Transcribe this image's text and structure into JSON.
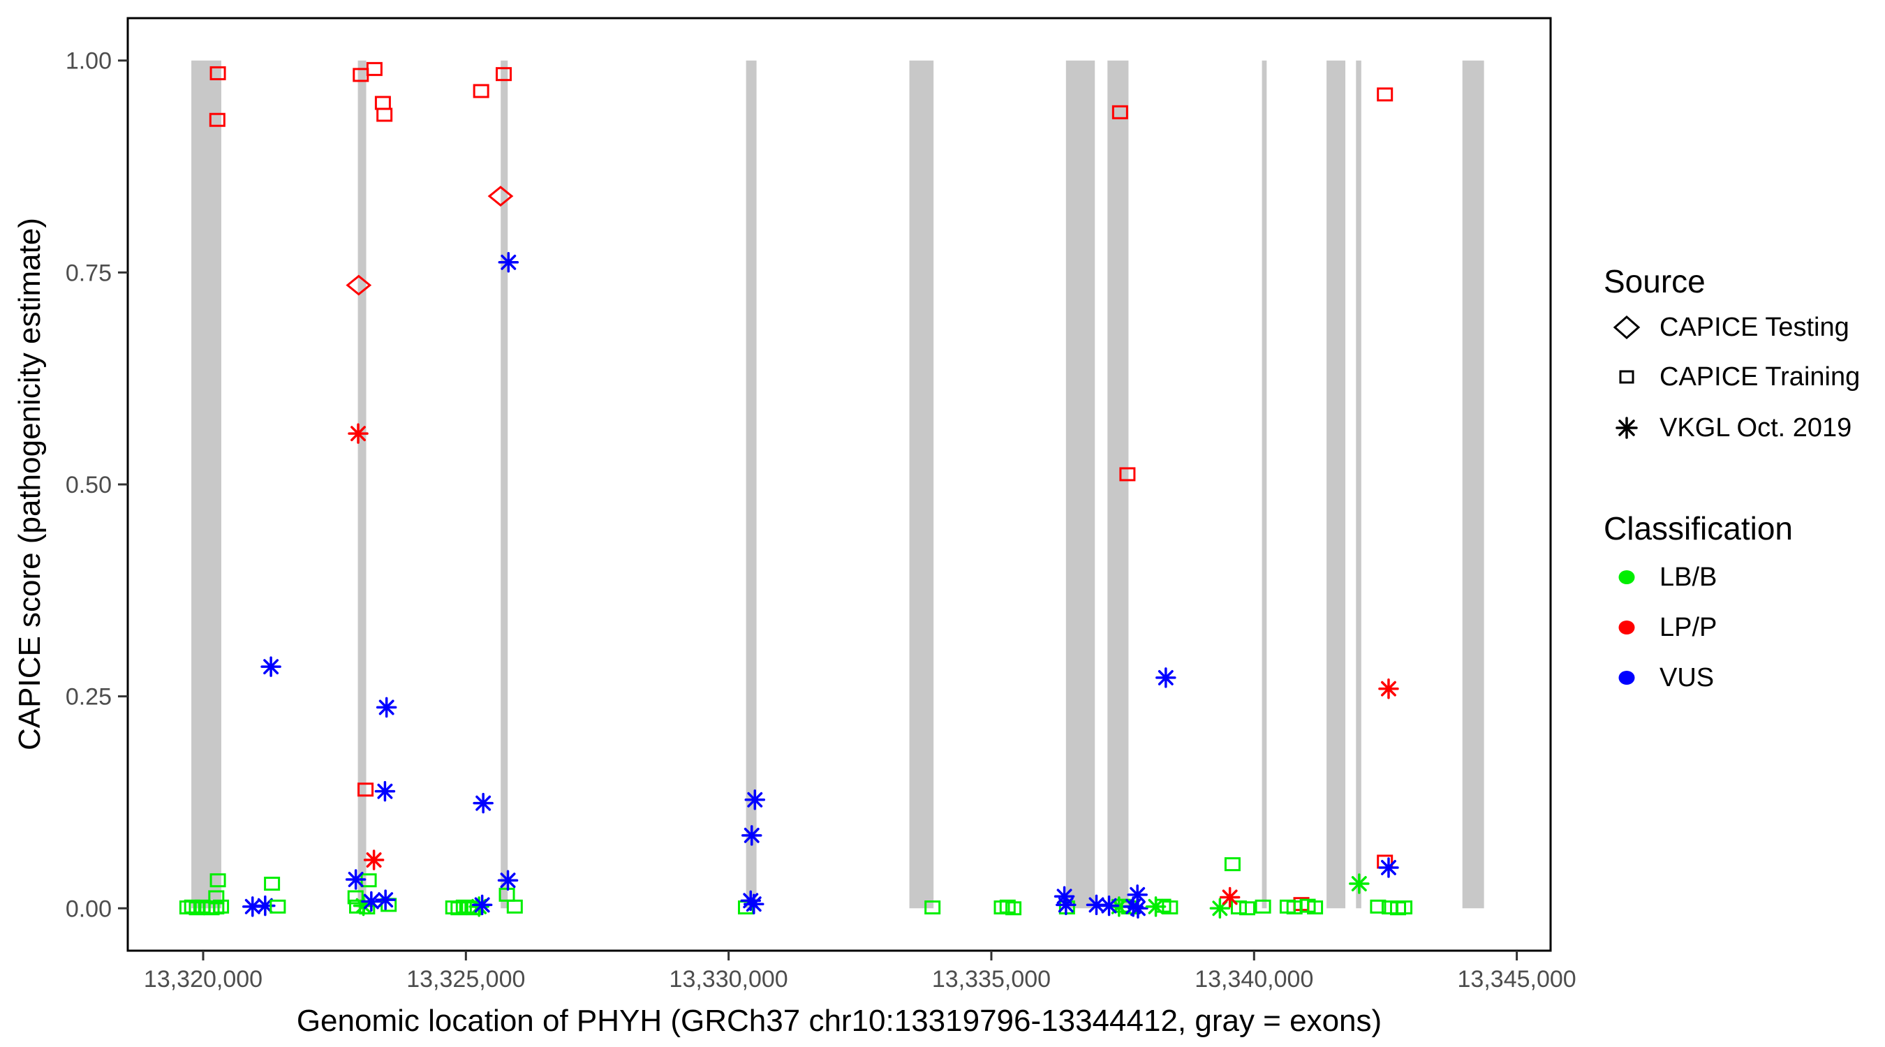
{
  "colors": {
    "exon": "#C8C8C8",
    "panel_border": "#000000",
    "tick": "#333333",
    "tick_label": "#4D4D4D",
    "axis_title": "#000000",
    "classification": {
      "LB/B": "#00EE00",
      "LP/P": "#FF0000",
      "VUS": "#0000FF"
    }
  },
  "legend": {
    "source": {
      "title": "Source",
      "items": [
        {
          "shape": "diamond",
          "label": "CAPICE Testing"
        },
        {
          "shape": "square",
          "label": "CAPICE Training"
        },
        {
          "shape": "asterisk",
          "label": "VKGL Oct. 2019"
        }
      ]
    },
    "classification": {
      "title": "Classification",
      "items": [
        {
          "label": "LB/B",
          "color": "#00EE00"
        },
        {
          "label": "LP/P",
          "color": "#FF0000"
        },
        {
          "label": "VUS",
          "color": "#0000FF"
        }
      ]
    }
  },
  "chart_data": {
    "type": "scatter",
    "title": "",
    "xlabel": "Genomic location of PHYH (GRCh37 chr10:13319796-13344412, gray = exons)",
    "ylabel": "CAPICE score (pathogenicity estimate)",
    "xlim": [
      13318565,
      13345643
    ],
    "ylim": [
      -0.05,
      1.05
    ],
    "grid": false,
    "legend_position": "right",
    "x_ticks": [
      {
        "value": 13320000,
        "label": "13,320,000"
      },
      {
        "value": 13325000,
        "label": "13,325,000"
      },
      {
        "value": 13330000,
        "label": "13,330,000"
      },
      {
        "value": 13335000,
        "label": "13,335,000"
      },
      {
        "value": 13340000,
        "label": "13,340,000"
      },
      {
        "value": 13345000,
        "label": "13,345,000"
      }
    ],
    "y_ticks": [
      {
        "value": 0.0,
        "label": "0.00"
      },
      {
        "value": 0.25,
        "label": "0.25"
      },
      {
        "value": 0.5,
        "label": "0.50"
      },
      {
        "value": 0.75,
        "label": "0.75"
      },
      {
        "value": 1.0,
        "label": "1.00"
      }
    ],
    "markers_by_source": {
      "CAPICE Testing": "diamond",
      "CAPICE Training": "square",
      "VKGL Oct. 2019": "asterisk"
    },
    "exons": [
      [
        13319775,
        13320345
      ],
      [
        13322944,
        13323103
      ],
      [
        13325663,
        13325796
      ],
      [
        13330332,
        13330531
      ],
      [
        13333440,
        13333900
      ],
      [
        13336420,
        13336970
      ],
      [
        13337210,
        13337610
      ],
      [
        13340150,
        13340240
      ],
      [
        13341379,
        13341737
      ],
      [
        13341940,
        13342040
      ],
      [
        13343965,
        13344376
      ]
    ],
    "points": [
      {
        "x": 13319700,
        "y": 0.001,
        "source": "CAPICE Training",
        "cls": "LB/B"
      },
      {
        "x": 13319790,
        "y": 0.002,
        "source": "CAPICE Training",
        "cls": "LB/B"
      },
      {
        "x": 13319880,
        "y": 0.0,
        "source": "CAPICE Training",
        "cls": "LB/B"
      },
      {
        "x": 13319990,
        "y": 0.002,
        "source": "CAPICE Training",
        "cls": "LB/B"
      },
      {
        "x": 13320080,
        "y": 0.001,
        "source": "CAPICE Training",
        "cls": "LB/B"
      },
      {
        "x": 13320160,
        "y": 0.0,
        "source": "CAPICE Training",
        "cls": "LB/B"
      },
      {
        "x": 13320250,
        "y": 0.001,
        "source": "CAPICE Training",
        "cls": "LB/B"
      },
      {
        "x": 13320340,
        "y": 0.002,
        "source": "CAPICE Training",
        "cls": "LB/B"
      },
      {
        "x": 13320250,
        "y": 0.013,
        "source": "CAPICE Training",
        "cls": "LB/B"
      },
      {
        "x": 13320280,
        "y": 0.033,
        "source": "CAPICE Training",
        "cls": "LB/B"
      },
      {
        "x": 13320280,
        "y": 0.985,
        "source": "CAPICE Training",
        "cls": "LP/P"
      },
      {
        "x": 13320270,
        "y": 0.93,
        "source": "CAPICE Training",
        "cls": "LP/P"
      },
      {
        "x": 13320940,
        "y": 0.002,
        "source": "VKGL Oct. 2019",
        "cls": "VUS"
      },
      {
        "x": 13321180,
        "y": 0.003,
        "source": "VKGL Oct. 2019",
        "cls": "VUS"
      },
      {
        "x": 13321290,
        "y": 0.285,
        "source": "VKGL Oct. 2019",
        "cls": "VUS"
      },
      {
        "x": 13321310,
        "y": 0.029,
        "source": "CAPICE Training",
        "cls": "LB/B"
      },
      {
        "x": 13321420,
        "y": 0.002,
        "source": "CAPICE Training",
        "cls": "LB/B"
      },
      {
        "x": 13322930,
        "y": 0.002,
        "source": "CAPICE Training",
        "cls": "LB/B"
      },
      {
        "x": 13322900,
        "y": 0.013,
        "source": "CAPICE Training",
        "cls": "LB/B"
      },
      {
        "x": 13323150,
        "y": 0.033,
        "source": "CAPICE Training",
        "cls": "LB/B"
      },
      {
        "x": 13323120,
        "y": 0.001,
        "source": "CAPICE Training",
        "cls": "LB/B"
      },
      {
        "x": 13323530,
        "y": 0.004,
        "source": "CAPICE Training",
        "cls": "LB/B"
      },
      {
        "x": 13323050,
        "y": 0.003,
        "source": "VKGL Oct. 2019",
        "cls": "LB/B"
      },
      {
        "x": 13323090,
        "y": 0.14,
        "source": "CAPICE Training",
        "cls": "LP/P"
      },
      {
        "x": 13323000,
        "y": 0.983,
        "source": "CAPICE Training",
        "cls": "LP/P"
      },
      {
        "x": 13323260,
        "y": 0.99,
        "source": "CAPICE Training",
        "cls": "LP/P"
      },
      {
        "x": 13323420,
        "y": 0.95,
        "source": "CAPICE Training",
        "cls": "LP/P"
      },
      {
        "x": 13323450,
        "y": 0.936,
        "source": "CAPICE Training",
        "cls": "LP/P"
      },
      {
        "x": 13322960,
        "y": 0.735,
        "source": "CAPICE Testing",
        "cls": "LP/P"
      },
      {
        "x": 13322950,
        "y": 0.56,
        "source": "VKGL Oct. 2019",
        "cls": "LP/P"
      },
      {
        "x": 13323250,
        "y": 0.057,
        "source": "VKGL Oct. 2019",
        "cls": "LP/P"
      },
      {
        "x": 13322905,
        "y": 0.034,
        "source": "VKGL Oct. 2019",
        "cls": "VUS"
      },
      {
        "x": 13323200,
        "y": 0.008,
        "source": "VKGL Oct. 2019",
        "cls": "VUS"
      },
      {
        "x": 13323470,
        "y": 0.01,
        "source": "VKGL Oct. 2019",
        "cls": "VUS"
      },
      {
        "x": 13323490,
        "y": 0.237,
        "source": "VKGL Oct. 2019",
        "cls": "VUS"
      },
      {
        "x": 13323460,
        "y": 0.138,
        "source": "VKGL Oct. 2019",
        "cls": "VUS"
      },
      {
        "x": 13324760,
        "y": 0.001,
        "source": "CAPICE Training",
        "cls": "LB/B"
      },
      {
        "x": 13324860,
        "y": 0.0,
        "source": "CAPICE Training",
        "cls": "LB/B"
      },
      {
        "x": 13324960,
        "y": 0.002,
        "source": "CAPICE Training",
        "cls": "LB/B"
      },
      {
        "x": 13325060,
        "y": 0.001,
        "source": "CAPICE Training",
        "cls": "LB/B"
      },
      {
        "x": 13325160,
        "y": 0.0,
        "source": "CAPICE Training",
        "cls": "LB/B"
      },
      {
        "x": 13325780,
        "y": 0.016,
        "source": "CAPICE Training",
        "cls": "LB/B"
      },
      {
        "x": 13325930,
        "y": 0.002,
        "source": "CAPICE Training",
        "cls": "LB/B"
      },
      {
        "x": 13325250,
        "y": 0.002,
        "source": "VKGL Oct. 2019",
        "cls": "LB/B"
      },
      {
        "x": 13325290,
        "y": 0.964,
        "source": "CAPICE Training",
        "cls": "LP/P"
      },
      {
        "x": 13325720,
        "y": 0.984,
        "source": "CAPICE Training",
        "cls": "LP/P"
      },
      {
        "x": 13325660,
        "y": 0.84,
        "source": "CAPICE Testing",
        "cls": "LP/P"
      },
      {
        "x": 13325810,
        "y": 0.762,
        "source": "VKGL Oct. 2019",
        "cls": "VUS"
      },
      {
        "x": 13325330,
        "y": 0.124,
        "source": "VKGL Oct. 2019",
        "cls": "VUS"
      },
      {
        "x": 13325310,
        "y": 0.004,
        "source": "VKGL Oct. 2019",
        "cls": "VUS"
      },
      {
        "x": 13325800,
        "y": 0.033,
        "source": "VKGL Oct. 2019",
        "cls": "VUS"
      },
      {
        "x": 13330330,
        "y": 0.001,
        "source": "CAPICE Training",
        "cls": "LB/B"
      },
      {
        "x": 13330500,
        "y": 0.128,
        "source": "VKGL Oct. 2019",
        "cls": "VUS"
      },
      {
        "x": 13330440,
        "y": 0.086,
        "source": "VKGL Oct. 2019",
        "cls": "VUS"
      },
      {
        "x": 13330420,
        "y": 0.009,
        "source": "VKGL Oct. 2019",
        "cls": "VUS"
      },
      {
        "x": 13330480,
        "y": 0.005,
        "source": "VKGL Oct. 2019",
        "cls": "VUS"
      },
      {
        "x": 13333880,
        "y": 0.001,
        "source": "CAPICE Training",
        "cls": "LB/B"
      },
      {
        "x": 13335200,
        "y": 0.001,
        "source": "CAPICE Training",
        "cls": "LB/B"
      },
      {
        "x": 13335310,
        "y": 0.002,
        "source": "CAPICE Training",
        "cls": "LB/B"
      },
      {
        "x": 13335420,
        "y": 0.0,
        "source": "CAPICE Training",
        "cls": "LB/B"
      },
      {
        "x": 13336440,
        "y": 0.001,
        "source": "CAPICE Training",
        "cls": "LB/B"
      },
      {
        "x": 13336390,
        "y": 0.014,
        "source": "VKGL Oct. 2019",
        "cls": "VUS"
      },
      {
        "x": 13336420,
        "y": 0.004,
        "source": "VKGL Oct. 2019",
        "cls": "VUS"
      },
      {
        "x": 13337500,
        "y": 0.003,
        "source": "CAPICE Training",
        "cls": "LB/B"
      },
      {
        "x": 13337620,
        "y": 0.001,
        "source": "CAPICE Training",
        "cls": "LB/B"
      },
      {
        "x": 13337430,
        "y": 0.002,
        "source": "VKGL Oct. 2019",
        "cls": "LB/B"
      },
      {
        "x": 13337000,
        "y": 0.004,
        "source": "VKGL Oct. 2019",
        "cls": "VUS"
      },
      {
        "x": 13337240,
        "y": 0.003,
        "source": "VKGL Oct. 2019",
        "cls": "VUS"
      },
      {
        "x": 13337700,
        "y": 0.002,
        "source": "VKGL Oct. 2019",
        "cls": "VUS"
      },
      {
        "x": 13337780,
        "y": 0.016,
        "source": "VKGL Oct. 2019",
        "cls": "VUS"
      },
      {
        "x": 13337790,
        "y": 0.0,
        "source": "VKGL Oct. 2019",
        "cls": "VUS"
      },
      {
        "x": 13337450,
        "y": 0.939,
        "source": "CAPICE Training",
        "cls": "LP/P"
      },
      {
        "x": 13337590,
        "y": 0.512,
        "source": "CAPICE Training",
        "cls": "LP/P"
      },
      {
        "x": 13338130,
        "y": 0.002,
        "source": "VKGL Oct. 2019",
        "cls": "LB/B"
      },
      {
        "x": 13338270,
        "y": 0.003,
        "source": "CAPICE Training",
        "cls": "LB/B"
      },
      {
        "x": 13338400,
        "y": 0.001,
        "source": "CAPICE Training",
        "cls": "LB/B"
      },
      {
        "x": 13338320,
        "y": 0.272,
        "source": "VKGL Oct. 2019",
        "cls": "VUS"
      },
      {
        "x": 13339590,
        "y": 0.052,
        "source": "CAPICE Training",
        "cls": "LB/B"
      },
      {
        "x": 13339710,
        "y": 0.001,
        "source": "CAPICE Training",
        "cls": "LB/B"
      },
      {
        "x": 13339870,
        "y": 0.0,
        "source": "CAPICE Training",
        "cls": "LB/B"
      },
      {
        "x": 13340170,
        "y": 0.002,
        "source": "CAPICE Training",
        "cls": "LB/B"
      },
      {
        "x": 13339350,
        "y": 0.0,
        "source": "VKGL Oct. 2019",
        "cls": "LB/B"
      },
      {
        "x": 13339540,
        "y": 0.013,
        "source": "VKGL Oct. 2019",
        "cls": "LP/P"
      },
      {
        "x": 13340900,
        "y": 0.005,
        "source": "CAPICE Training",
        "cls": "LP/P"
      },
      {
        "x": 13340640,
        "y": 0.002,
        "source": "CAPICE Training",
        "cls": "LB/B"
      },
      {
        "x": 13340770,
        "y": 0.001,
        "source": "CAPICE Training",
        "cls": "LB/B"
      },
      {
        "x": 13341020,
        "y": 0.003,
        "source": "CAPICE Training",
        "cls": "LB/B"
      },
      {
        "x": 13341160,
        "y": 0.001,
        "source": "CAPICE Training",
        "cls": "LB/B"
      },
      {
        "x": 13342000,
        "y": 0.029,
        "source": "VKGL Oct. 2019",
        "cls": "LB/B"
      },
      {
        "x": 13342490,
        "y": 0.96,
        "source": "CAPICE Training",
        "cls": "LP/P"
      },
      {
        "x": 13342490,
        "y": 0.055,
        "source": "CAPICE Training",
        "cls": "LP/P"
      },
      {
        "x": 13342560,
        "y": 0.048,
        "source": "VKGL Oct. 2019",
        "cls": "VUS"
      },
      {
        "x": 13342560,
        "y": 0.259,
        "source": "VKGL Oct. 2019",
        "cls": "LP/P"
      },
      {
        "x": 13342360,
        "y": 0.002,
        "source": "CAPICE Training",
        "cls": "LB/B"
      },
      {
        "x": 13342580,
        "y": 0.001,
        "source": "CAPICE Training",
        "cls": "LB/B"
      },
      {
        "x": 13342740,
        "y": 0.0,
        "source": "CAPICE Training",
        "cls": "LB/B"
      },
      {
        "x": 13342860,
        "y": 0.001,
        "source": "CAPICE Training",
        "cls": "LB/B"
      }
    ]
  }
}
